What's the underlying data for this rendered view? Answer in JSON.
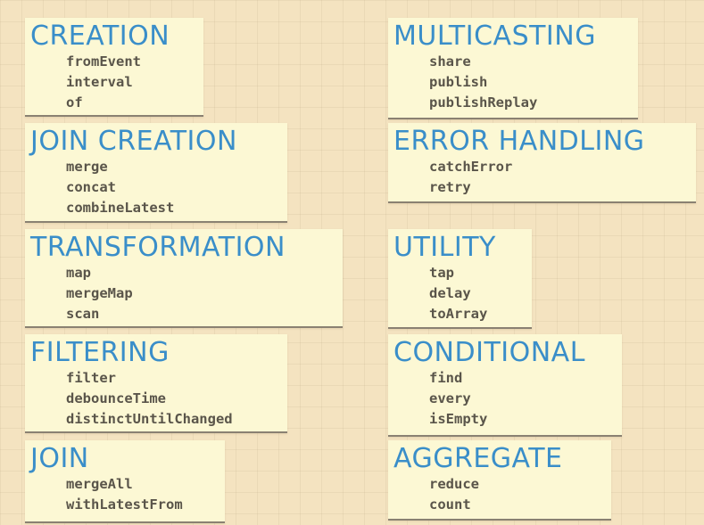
{
  "categories": [
    {
      "key": "creation",
      "title": "CREATION",
      "items": [
        "fromEvent",
        "interval",
        "of"
      ]
    },
    {
      "key": "join-creation",
      "title": "JOIN CREATION",
      "items": [
        "merge",
        "concat",
        "combineLatest"
      ]
    },
    {
      "key": "transformation",
      "title": "TRANSFORMATION",
      "items": [
        "map",
        "mergeMap",
        "scan"
      ]
    },
    {
      "key": "filtering",
      "title": "FILTERING",
      "items": [
        "filter",
        "debounceTime",
        "distinctUntilChanged"
      ]
    },
    {
      "key": "join",
      "title": "JOIN",
      "items": [
        "mergeAll",
        "withLatestFrom"
      ]
    },
    {
      "key": "multicasting",
      "title": "MULTICASTING",
      "items": [
        "share",
        "publish",
        "publishReplay"
      ]
    },
    {
      "key": "error-handling",
      "title": "ERROR HANDLING",
      "items": [
        "catchError",
        "retry"
      ]
    },
    {
      "key": "utility",
      "title": "UTILITY",
      "items": [
        "tap",
        "delay",
        "toArray"
      ]
    },
    {
      "key": "conditional",
      "title": "CONDITIONAL",
      "items": [
        "find",
        "every",
        "isEmpty"
      ]
    },
    {
      "key": "aggregate",
      "title": "AGGREGATE",
      "items": [
        "reduce",
        "count"
      ]
    }
  ],
  "colors": {
    "background": "#f4e3c0",
    "card": "#fcf8d4",
    "title": "#3a8ec9",
    "item": "#5a554a"
  }
}
